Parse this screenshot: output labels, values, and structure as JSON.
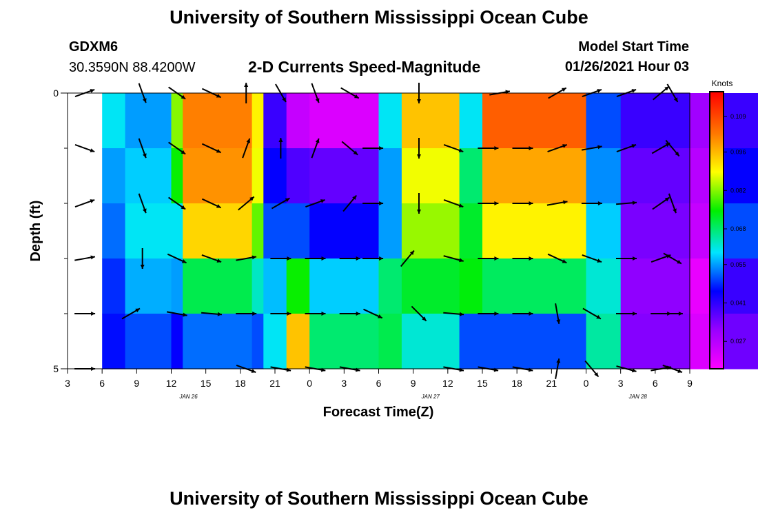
{
  "header": {
    "title": "University of Southern Mississippi Ocean Cube",
    "station_id": "GDXM6",
    "coords": "30.3590N 88.4200W",
    "subtitle": "2-D Currents Speed-Magnitude",
    "model_start_label": "Model Start Time",
    "model_start_value": "01/26/2021 Hour 03"
  },
  "footer": {
    "title": "University of Southern Mississippi Ocean Cube"
  },
  "chart_data": {
    "type": "heatmap",
    "title": "2-D Currents Speed-Magnitude",
    "xlabel": "Forecast Time(Z)",
    "ylabel": "Depth (ft)",
    "y_ticks": [
      "0",
      "5"
    ],
    "ylim": [
      0,
      5
    ],
    "x_ticks": [
      "3",
      "6",
      "9",
      "12",
      "15",
      "18",
      "21",
      "0",
      "3",
      "6",
      "9",
      "12",
      "15",
      "18",
      "21",
      "0",
      "3",
      "6",
      "9"
    ],
    "day_labels": [
      {
        "label": "JAN 26",
        "after_tick": 3
      },
      {
        "label": "JAN 27",
        "after_tick": 10
      },
      {
        "label": "JAN 28",
        "after_tick": 16
      }
    ],
    "colorbar": {
      "units": "Knots",
      "range": [
        0.017,
        0.118
      ],
      "tick_labels": [
        "0.109",
        "0.096",
        "0.082",
        "0.068",
        "0.055",
        "0.041",
        "0.027"
      ],
      "tick_values": [
        0.109,
        0.096,
        0.082,
        0.068,
        0.055,
        0.041,
        0.027
      ]
    },
    "depth_layers": 5,
    "speed_profiles": [
      {
        "from_h": 3,
        "to_h": 5,
        "values": [
          0.06,
          0.055,
          0.052,
          0.048,
          0.046
        ]
      },
      {
        "from_h": 5,
        "to_h": 9,
        "values": [
          0.055,
          0.058,
          0.06,
          0.056,
          0.05
        ]
      },
      {
        "from_h": 9,
        "to_h": 10,
        "values": [
          0.082,
          0.075,
          0.06,
          0.055,
          0.045
        ]
      },
      {
        "from_h": 10,
        "to_h": 16,
        "values": [
          0.102,
          0.1,
          0.093,
          0.07,
          0.052
        ]
      },
      {
        "from_h": 16,
        "to_h": 17,
        "values": [
          0.09,
          0.088,
          0.08,
          0.063,
          0.05
        ]
      },
      {
        "from_h": 17,
        "to_h": 19,
        "values": [
          0.04,
          0.045,
          0.05,
          0.057,
          0.06
        ]
      },
      {
        "from_h": 19,
        "to_h": 21,
        "values": [
          0.025,
          0.038,
          0.05,
          0.075,
          0.095
        ]
      },
      {
        "from_h": 21,
        "to_h": 27,
        "values": [
          0.022,
          0.036,
          0.045,
          0.058,
          0.068
        ]
      },
      {
        "from_h": 27,
        "to_h": 29,
        "values": [
          0.06,
          0.055,
          0.055,
          0.068,
          0.07
        ]
      },
      {
        "from_h": 29,
        "to_h": 34,
        "values": [
          0.095,
          0.088,
          0.083,
          0.072,
          0.062
        ]
      },
      {
        "from_h": 34,
        "to_h": 36,
        "values": [
          0.06,
          0.068,
          0.072,
          0.074,
          0.05
        ]
      },
      {
        "from_h": 36,
        "to_h": 45,
        "values": [
          0.106,
          0.098,
          0.09,
          0.069,
          0.05
        ]
      },
      {
        "from_h": 45,
        "to_h": 48,
        "values": [
          0.05,
          0.054,
          0.058,
          0.062,
          0.065
        ]
      },
      {
        "from_h": 48,
        "to_h": 54,
        "values": [
          0.04,
          0.036,
          0.034,
          0.032,
          0.033
        ]
      },
      {
        "from_h": 54,
        "to_h": 57,
        "values": [
          0.03,
          0.027,
          0.025,
          0.02,
          0.022
        ]
      },
      {
        "from_h": 57,
        "to_h": 60,
        "values": [
          0.04,
          0.045,
          0.05,
          0.04,
          0.035
        ]
      }
    ],
    "vector_rows": [
      {
        "layer": 0,
        "vectors": [
          [
            4.5,
            20
          ],
          [
            9.5,
            -70
          ],
          [
            12.5,
            -35
          ],
          [
            15.5,
            -25
          ],
          [
            18.5,
            90
          ],
          [
            21.5,
            -60
          ],
          [
            0.5,
            -70
          ],
          [
            3.5,
            -30
          ],
          [
            9.5,
            -90
          ],
          [
            16.5,
            10
          ],
          [
            21.5,
            30
          ],
          [
            24.5,
            20
          ],
          [
            27.5,
            20
          ],
          [
            30.5,
            40
          ],
          [
            31.5,
            -60
          ]
        ]
      },
      {
        "layer": 1,
        "vectors": [
          [
            4.5,
            -20
          ],
          [
            9.5,
            -70
          ],
          [
            12.5,
            -35
          ],
          [
            15.5,
            -25
          ],
          [
            18.5,
            70
          ],
          [
            21.5,
            90
          ],
          [
            0.5,
            70
          ],
          [
            3.5,
            -40
          ],
          [
            5.5,
            0
          ],
          [
            9.5,
            -90
          ],
          [
            12.5,
            -20
          ],
          [
            15.5,
            0
          ],
          [
            18.5,
            0
          ],
          [
            21.5,
            20
          ],
          [
            24.5,
            10
          ],
          [
            27.5,
            20
          ],
          [
            30.5,
            30
          ],
          [
            31.5,
            -50
          ]
        ]
      },
      {
        "layer": 2,
        "vectors": [
          [
            4.5,
            20
          ],
          [
            9.5,
            -70
          ],
          [
            12.5,
            -35
          ],
          [
            15.5,
            -25
          ],
          [
            18.5,
            40
          ],
          [
            21.5,
            30
          ],
          [
            0.5,
            20
          ],
          [
            3.5,
            50
          ],
          [
            5.5,
            0
          ],
          [
            9.5,
            -90
          ],
          [
            12.5,
            -20
          ],
          [
            15.5,
            0
          ],
          [
            18.5,
            0
          ],
          [
            21.5,
            10
          ],
          [
            24.5,
            0
          ],
          [
            27.5,
            5
          ],
          [
            30.5,
            35
          ],
          [
            31.5,
            -70
          ]
        ]
      },
      {
        "layer": 3,
        "vectors": [
          [
            4.5,
            10
          ],
          [
            9.5,
            -90
          ],
          [
            12.5,
            -25
          ],
          [
            15.5,
            -20
          ],
          [
            18.5,
            10
          ],
          [
            21.5,
            0
          ],
          [
            0.5,
            0
          ],
          [
            3.5,
            0
          ],
          [
            5.5,
            0
          ],
          [
            8.5,
            50
          ],
          [
            12.5,
            -15
          ],
          [
            15.5,
            0
          ],
          [
            18.5,
            0
          ],
          [
            21.5,
            -25
          ],
          [
            24.5,
            -20
          ],
          [
            27.5,
            0
          ],
          [
            30.5,
            20
          ],
          [
            31.5,
            -30
          ]
        ]
      },
      {
        "layer": 4,
        "vectors": [
          [
            4.5,
            0
          ],
          [
            8.5,
            30
          ],
          [
            12.5,
            -10
          ],
          [
            15.5,
            -5
          ],
          [
            18.5,
            0
          ],
          [
            21.5,
            0
          ],
          [
            0.5,
            0
          ],
          [
            3.5,
            0
          ],
          [
            5.5,
            -25
          ],
          [
            9.5,
            -45
          ],
          [
            12.5,
            -5
          ],
          [
            15.5,
            0
          ],
          [
            18.5,
            0
          ],
          [
            21.5,
            -80
          ],
          [
            24.5,
            -30
          ],
          [
            27.5,
            0
          ],
          [
            30.5,
            0
          ],
          [
            31.5,
            0
          ]
        ]
      },
      {
        "layer": 5,
        "vectors": [
          [
            4.5,
            0
          ],
          [
            18.5,
            -20
          ],
          [
            21.5,
            -10
          ],
          [
            0.5,
            -10
          ],
          [
            3.5,
            -10
          ],
          [
            12.5,
            -10
          ],
          [
            15.5,
            -10
          ],
          [
            18.5,
            -10
          ],
          [
            21.5,
            80
          ],
          [
            24.5,
            -50
          ],
          [
            27.5,
            -15
          ],
          [
            30.5,
            10
          ],
          [
            31.5,
            -20
          ]
        ]
      }
    ]
  }
}
